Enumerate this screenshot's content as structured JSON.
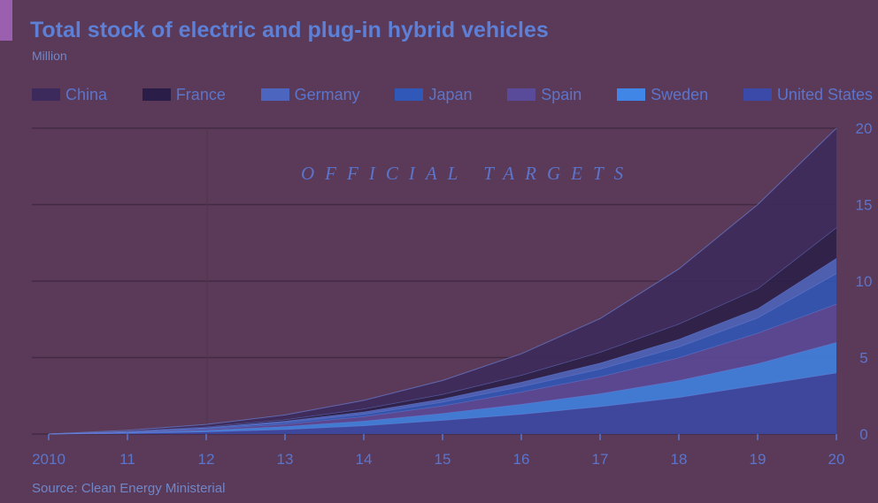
{
  "chart_data": {
    "type": "area",
    "stacked": true,
    "title": "Total stock of electric and plug-in hybrid vehicles",
    "subtitle": "Million",
    "source": "Source: Clean Energy Ministerial",
    "annotation": "OFFICIAL TARGETS",
    "x": [
      "2010",
      "11",
      "12",
      "13",
      "14",
      "15",
      "16",
      "17",
      "18",
      "19",
      "20"
    ],
    "ylim": [
      0,
      20
    ],
    "yticks": [
      0,
      5,
      10,
      15,
      20
    ],
    "grid": true,
    "legend_placement": "top",
    "series": [
      {
        "name": "United States",
        "color": "#3b4aa8",
        "values": [
          0,
          0.05,
          0.15,
          0.3,
          0.55,
          0.9,
          1.3,
          1.8,
          2.4,
          3.2,
          4.0
        ]
      },
      {
        "name": "Sweden",
        "color": "#3f86e6",
        "values": [
          0,
          0.05,
          0.1,
          0.2,
          0.3,
          0.45,
          0.65,
          0.85,
          1.1,
          1.4,
          2.0
        ]
      },
      {
        "name": "Spain",
        "color": "#5a4a9a",
        "values": [
          0,
          0.03,
          0.08,
          0.15,
          0.3,
          0.5,
          0.8,
          1.1,
          1.5,
          2.0,
          2.5
        ]
      },
      {
        "name": "Japan",
        "color": "#2f58b8",
        "values": [
          0,
          0.02,
          0.05,
          0.1,
          0.15,
          0.25,
          0.35,
          0.5,
          0.7,
          1.0,
          2.0
        ]
      },
      {
        "name": "Germany",
        "color": "#4c66c0",
        "values": [
          0,
          0.02,
          0.05,
          0.1,
          0.15,
          0.2,
          0.3,
          0.4,
          0.5,
          0.6,
          1.0
        ]
      },
      {
        "name": "France",
        "color": "#2a1e48",
        "values": [
          0,
          0.02,
          0.05,
          0.1,
          0.2,
          0.3,
          0.45,
          0.7,
          1.0,
          1.3,
          2.0
        ]
      },
      {
        "name": "China",
        "color": "#3c2a5c",
        "values": [
          0,
          0.05,
          0.15,
          0.3,
          0.55,
          0.9,
          1.4,
          2.2,
          3.6,
          5.5,
          6.5
        ]
      }
    ]
  },
  "legend_order": [
    "China",
    "France",
    "Germany",
    "Japan",
    "Spain",
    "Sweden",
    "United States"
  ]
}
